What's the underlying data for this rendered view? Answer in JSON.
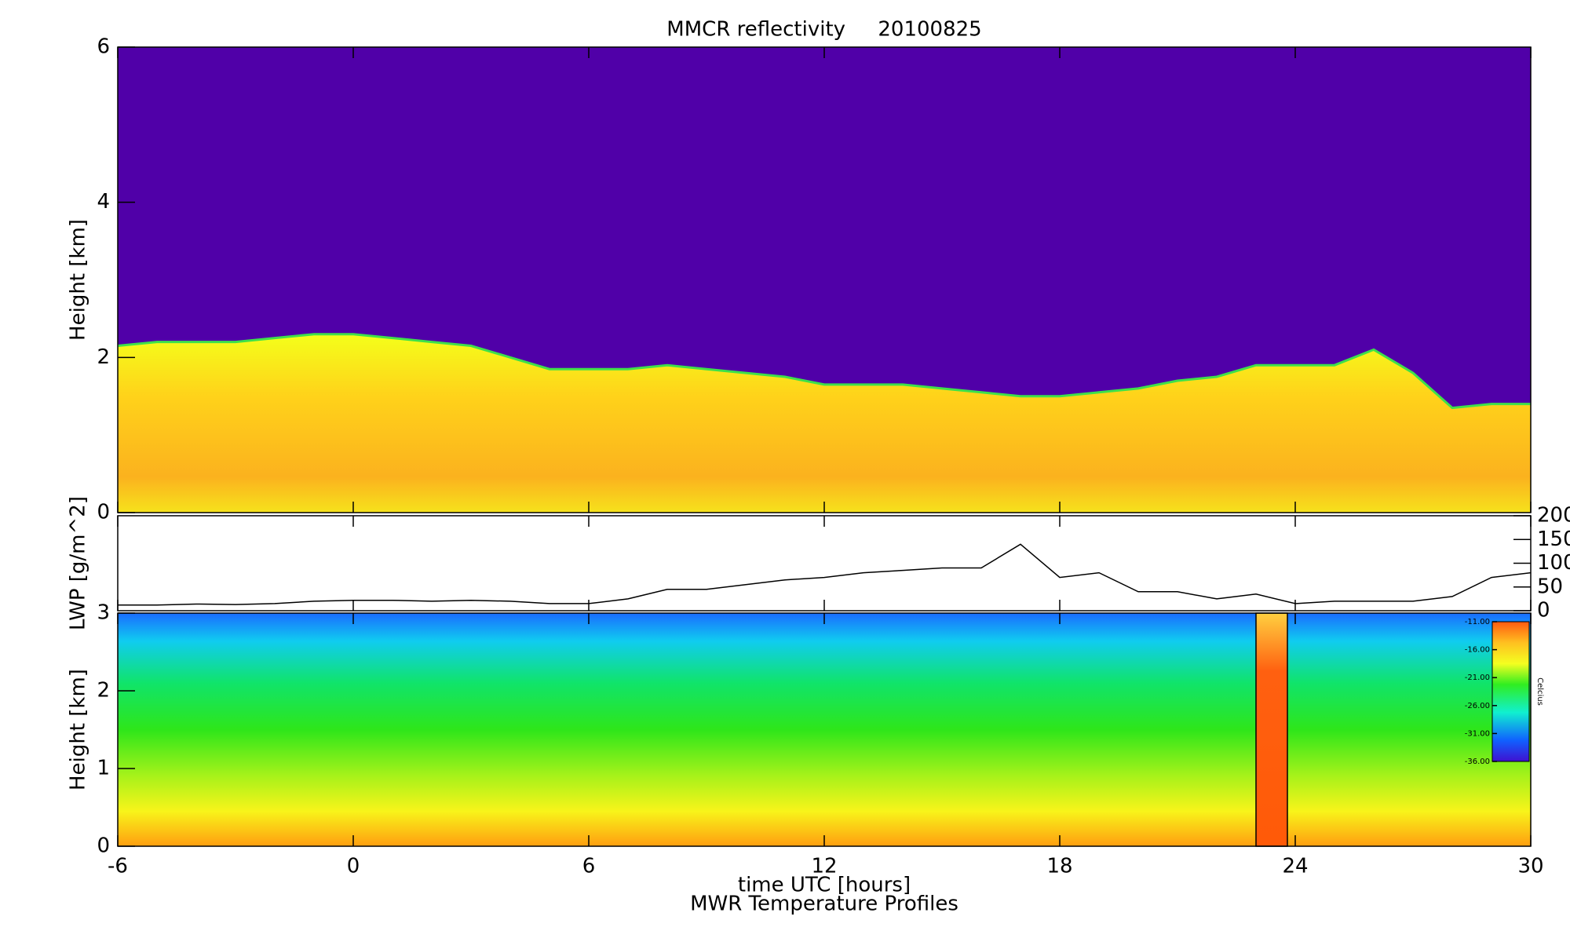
{
  "chart_data": [
    {
      "type": "area",
      "title": "MMCR reflectivity     20100825",
      "ylabel": "Height [km]",
      "x": [
        -6,
        -5,
        -4,
        -3,
        -2,
        -1,
        0,
        1,
        2,
        3,
        4,
        5,
        6,
        7,
        8,
        9,
        10,
        11,
        12,
        13,
        14,
        15,
        16,
        17,
        18,
        19,
        20,
        21,
        22,
        23,
        24,
        25,
        26,
        27,
        28,
        29,
        30
      ],
      "values": [
        2.15,
        2.2,
        2.2,
        2.2,
        2.25,
        2.3,
        2.3,
        2.25,
        2.2,
        2.15,
        2.0,
        1.85,
        1.85,
        1.85,
        1.9,
        1.85,
        1.8,
        1.75,
        1.65,
        1.65,
        1.65,
        1.6,
        1.55,
        1.5,
        1.5,
        1.55,
        1.6,
        1.7,
        1.75,
        1.9,
        1.9,
        1.9,
        2.1,
        1.8,
        1.35,
        1.4,
        1.4
      ],
      "xlim": [
        -6,
        30
      ],
      "ylim": [
        0,
        6
      ],
      "yticks": [
        0,
        2,
        4,
        6
      ]
    },
    {
      "type": "line",
      "ylabel": "LWP [g/m^2]",
      "x": [
        -6,
        -5,
        -4,
        -3,
        -2,
        -1,
        0,
        1,
        2,
        3,
        4,
        5,
        6,
        7,
        8,
        9,
        10,
        11,
        12,
        13,
        14,
        15,
        16,
        17,
        18,
        19,
        20,
        21,
        22,
        23,
        24,
        25,
        26,
        27,
        28,
        29,
        30
      ],
      "series": [
        {
          "color": "#000000",
          "axis": "y2",
          "values": [
            12,
            12,
            14,
            13,
            15,
            20,
            22,
            22,
            20,
            22,
            20,
            15,
            15,
            25,
            45,
            45,
            55,
            65,
            70,
            80,
            85,
            90,
            90,
            140,
            70,
            80,
            40,
            40,
            25,
            35,
            15,
            20,
            20,
            20,
            30,
            70,
            80
          ]
        }
      ],
      "xlim": [
        -6,
        30
      ],
      "y2lim": [
        0,
        200
      ],
      "y2ticks": [
        0,
        50,
        100,
        150,
        200
      ]
    },
    {
      "type": "contour",
      "ylabel": "Height [km]",
      "xlabel": "time UTC [hours]",
      "subtitle": "MWR Temperature Profiles",
      "xlim": [
        -6,
        30
      ],
      "xticks": [
        -6,
        0,
        6,
        12,
        18,
        24,
        30
      ],
      "ylim": [
        0,
        3
      ],
      "yticks": [
        0,
        1,
        2,
        3
      ],
      "span": [
        23.0,
        23.8
      ],
      "colorbar": {
        "label": "Celcius",
        "clim": [
          -36,
          -11
        ],
        "ticks": [
          {
            "value": -11,
            "label": "-11.00"
          },
          {
            "value": -16,
            "label": "-16.00"
          },
          {
            "value": -21,
            "label": "-21.00"
          },
          {
            "value": -26,
            "label": "-26.00"
          },
          {
            "value": -31,
            "label": "-31.00"
          },
          {
            "value": -36,
            "label": "-36.00"
          }
        ]
      }
    }
  ]
}
